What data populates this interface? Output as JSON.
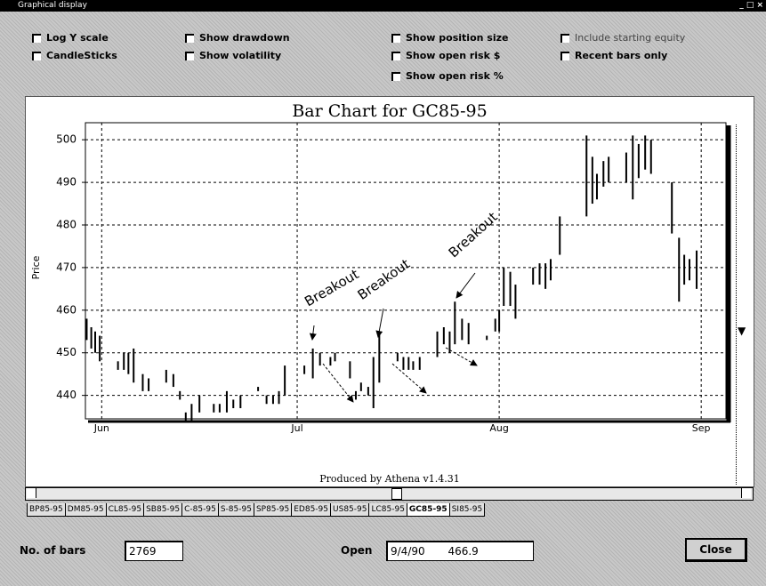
{
  "window": {
    "title": "Graphical display"
  },
  "options": [
    {
      "label": "Log Y scale",
      "enabled": true
    },
    {
      "label": "CandleSticks",
      "enabled": true
    },
    {
      "label": "Show drawdown",
      "enabled": true
    },
    {
      "label": "Show volatility",
      "enabled": true
    },
    {
      "label": "Show position size",
      "enabled": true
    },
    {
      "label": "Show open risk $",
      "enabled": true
    },
    {
      "label": "Show open risk %",
      "enabled": true
    },
    {
      "label": "Include starting equity",
      "enabled": false
    },
    {
      "label": "Recent bars only",
      "enabled": true
    }
  ],
  "chart_data": {
    "type": "ohlc",
    "title": "Bar Chart for GC85-95",
    "ylabel": "Price",
    "footer": "Produced by Athena v1.4.31",
    "annotations": [
      "Breakout",
      "Breakout",
      "Breakout"
    ],
    "color": "#000000",
    "grid": true,
    "xlim": [
      -2.5,
      95.8
    ],
    "ylim": [
      434.5,
      504
    ],
    "xticks": [
      {
        "value": 0,
        "label": "Jun"
      },
      {
        "value": 30,
        "label": "Jul"
      },
      {
        "value": 61,
        "label": "Aug"
      },
      {
        "value": 92,
        "label": "Sep"
      }
    ],
    "yticks": [
      440,
      450,
      460,
      470,
      480,
      490,
      500
    ],
    "x": [
      -2.3,
      -1.6,
      -1.0,
      -0.3,
      2.5,
      3.4,
      4.1,
      4.9,
      6.3,
      7.2,
      9.9,
      11.0,
      12.0,
      12.9,
      13.8,
      15.0,
      17.2,
      18.1,
      19.2,
      20.2,
      21.3,
      24.0,
      25.3,
      26.3,
      27.2,
      28.1,
      31.1,
      32.4,
      33.5,
      35.1,
      35.8,
      38.1,
      39.0,
      39.8,
      40.9,
      41.7,
      42.6,
      45.4,
      46.3,
      47.1,
      47.8,
      48.8,
      51.5,
      52.5,
      53.4,
      54.2,
      55.3,
      56.3,
      59.1,
      60.4,
      61.0,
      61.7,
      62.7,
      63.5,
      66.2,
      67.2,
      68.1,
      68.9,
      70.3,
      74.4,
      75.3,
      76.0,
      77.0,
      77.8,
      80.5,
      81.5,
      82.4,
      83.4,
      84.3,
      87.5,
      88.6,
      89.4,
      90.2,
      91.3
    ],
    "high": [
      458,
      456,
      455,
      454,
      448,
      450,
      450,
      451,
      445,
      444,
      446,
      445,
      441,
      436,
      438,
      440,
      438,
      438,
      441,
      439,
      440,
      442,
      440,
      440,
      441,
      447,
      447,
      451,
      450,
      449,
      450,
      448,
      441,
      443,
      442,
      449,
      455,
      450,
      449,
      449,
      448,
      449,
      455,
      456,
      455,
      462,
      458,
      457,
      454,
      458,
      460,
      470,
      469,
      466,
      470,
      471,
      471,
      472,
      482,
      501,
      496,
      492,
      495,
      496,
      497,
      501,
      499,
      501,
      500,
      490,
      477,
      473,
      472,
      474
    ],
    "low": [
      453,
      451,
      450,
      448,
      446,
      446,
      445,
      443,
      441,
      441,
      443,
      442,
      439,
      434,
      434,
      436,
      436,
      436,
      436,
      437,
      437,
      441,
      438,
      438,
      438,
      440,
      445,
      444,
      447,
      447,
      448,
      444,
      439,
      441,
      440,
      437,
      443,
      448,
      446,
      446,
      446,
      446,
      449,
      452,
      450,
      452,
      453,
      452,
      453,
      455,
      455,
      461,
      461,
      458,
      466,
      466,
      465,
      467,
      473,
      482,
      485,
      486,
      489,
      490,
      490,
      486,
      491,
      493,
      492,
      478,
      462,
      466,
      467,
      465
    ]
  },
  "tabs": [
    "BP85-95",
    "DM85-95",
    "CL85-95",
    "SB85-95",
    "C-85-95",
    "S-85-95",
    "SP85-95",
    "ED85-95",
    "US85-95",
    "LC85-95",
    "GC85-95",
    "SI85-95"
  ],
  "selected_tab": "GC85-95",
  "fields": {
    "bars_label": "No. of bars",
    "bars_value": 2769,
    "open_label": "Open",
    "open_date": "9/4/90",
    "open_price": 466.9,
    "close_button": "Close"
  }
}
